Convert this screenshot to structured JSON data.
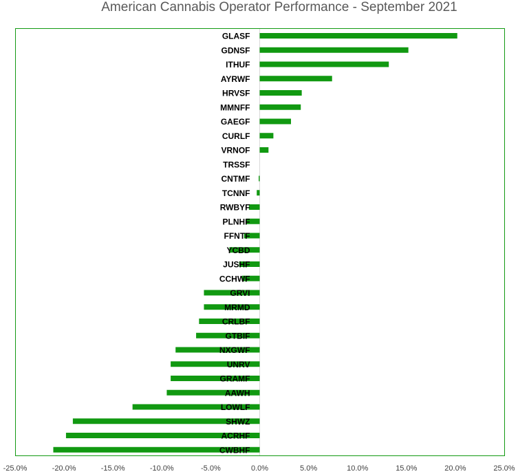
{
  "chart_data": {
    "type": "bar",
    "orientation": "horizontal",
    "title": "American Cannabis Operator Performance - September 2021",
    "xlabel": "",
    "ylabel": "",
    "xlim": [
      -25,
      25
    ],
    "x_ticks": [
      "-25.0%",
      "-20.0%",
      "-15.0%",
      "-10.0%",
      "-5.0%",
      "0.0%",
      "5.0%",
      "10.0%",
      "15.0%",
      "20.0%",
      "25.0%"
    ],
    "x_tick_values": [
      -25,
      -20,
      -15,
      -10,
      -5,
      0,
      5,
      10,
      15,
      20,
      25
    ],
    "grid": false,
    "legend": "none",
    "bar_color": "#119911",
    "frame_color": "#119911",
    "categories": [
      "GLASF",
      "GDNSF",
      "ITHUF",
      "AYRWF",
      "HRVSF",
      "MMNFF",
      "GAEGF",
      "CURLF",
      "VRNOF",
      "TRSSF",
      "CNTMF",
      "TCNNF",
      "RWBYF",
      "PLNHF",
      "FFNTF",
      "YCBD",
      "JUSHF",
      "CCHWF",
      "GRVI",
      "MRMD",
      "CRLBF",
      "GTBIF",
      "NXGWF",
      "UNRV",
      "GRAMF",
      "AAWH",
      "LOWLF",
      "SHWZ",
      "ACRHF",
      "CWBHF"
    ],
    "values": [
      20.2,
      15.2,
      13.2,
      7.4,
      4.3,
      4.2,
      3.2,
      1.4,
      0.9,
      0.0,
      -0.1,
      -0.3,
      -1.1,
      -1.4,
      -1.6,
      -3.1,
      -2.1,
      -1.8,
      -5.7,
      -5.7,
      -6.2,
      -6.5,
      -8.6,
      -9.1,
      -9.1,
      -9.5,
      -13.0,
      -19.1,
      -19.8,
      -21.1
    ]
  }
}
